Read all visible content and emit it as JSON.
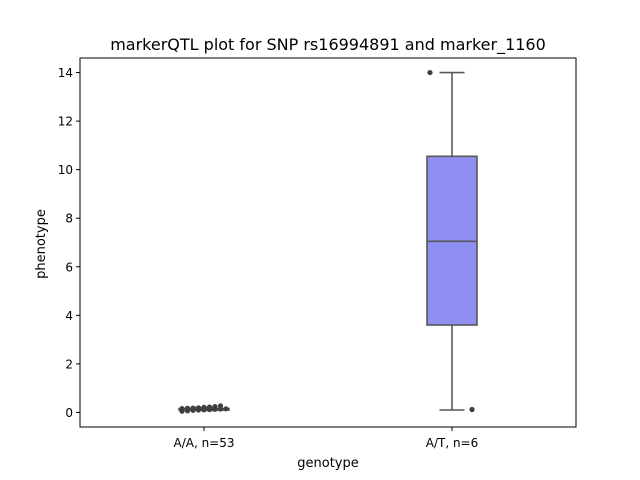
{
  "chart_data": {
    "type": "box",
    "title": "markerQTL plot for SNP rs16994891 and marker_1160",
    "xlabel": "genotype",
    "ylabel": "phenotype",
    "ylim": [
      -0.6,
      14.6
    ],
    "yticks": [
      0,
      2,
      4,
      6,
      8,
      10,
      12,
      14
    ],
    "categories": [
      "A/A, n=53",
      "A/T, n=6"
    ],
    "grid": false,
    "series": [
      {
        "category": "A/A, n=53",
        "color": "#8f8ff2",
        "min": 0.08,
        "q1": 0.12,
        "median": 0.14,
        "q3": 0.16,
        "max": 0.2,
        "outliers": [
          0.05,
          0.07,
          0.09,
          0.1,
          0.11,
          0.12,
          0.13,
          0.14,
          0.15,
          0.16,
          0.17,
          0.18,
          0.19,
          0.21,
          0.22,
          0.24,
          0.27
        ]
      },
      {
        "category": "A/T, n=6",
        "color": "#8f8ff2",
        "min": 0.1,
        "q1": 3.6,
        "median": 7.05,
        "q3": 10.55,
        "max": 14.0,
        "outliers": [
          14.0,
          0.12
        ]
      }
    ]
  }
}
